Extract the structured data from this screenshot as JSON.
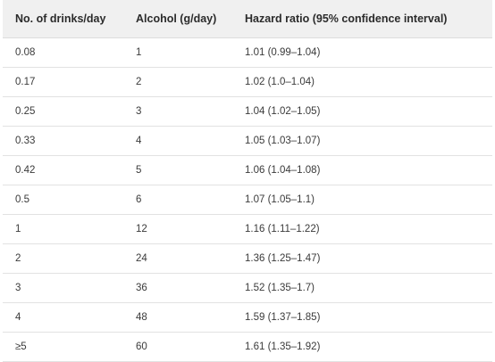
{
  "table": {
    "headers": [
      "No. of drinks/day",
      "Alcohol (g/day)",
      "Hazard ratio (95% confidence interval)"
    ],
    "rows": [
      [
        "0.08",
        "1",
        "1.01 (0.99–1.04)"
      ],
      [
        "0.17",
        "2",
        "1.02 (1.0–1.04)"
      ],
      [
        "0.25",
        "3",
        "1.04 (1.02–1.05)"
      ],
      [
        "0.33",
        "4",
        "1.05 (1.03–1.07)"
      ],
      [
        "0.42",
        "5",
        "1.06 (1.04–1.08)"
      ],
      [
        "0.5",
        "6",
        "1.07 (1.05–1.1)"
      ],
      [
        "1",
        "12",
        "1.16 (1.11–1.22)"
      ],
      [
        "2",
        "24",
        "1.36 (1.25–1.47)"
      ],
      [
        "3",
        "36",
        "1.52 (1.35–1.7)"
      ],
      [
        "4",
        "48",
        "1.59 (1.37–1.85)"
      ],
      [
        "≥5",
        "60",
        "1.61 (1.35–1.92)"
      ]
    ]
  },
  "colors": {
    "header_bg": "#f0f0f0",
    "row_border": "#e2e2e2",
    "text": "#3a3a3a"
  }
}
